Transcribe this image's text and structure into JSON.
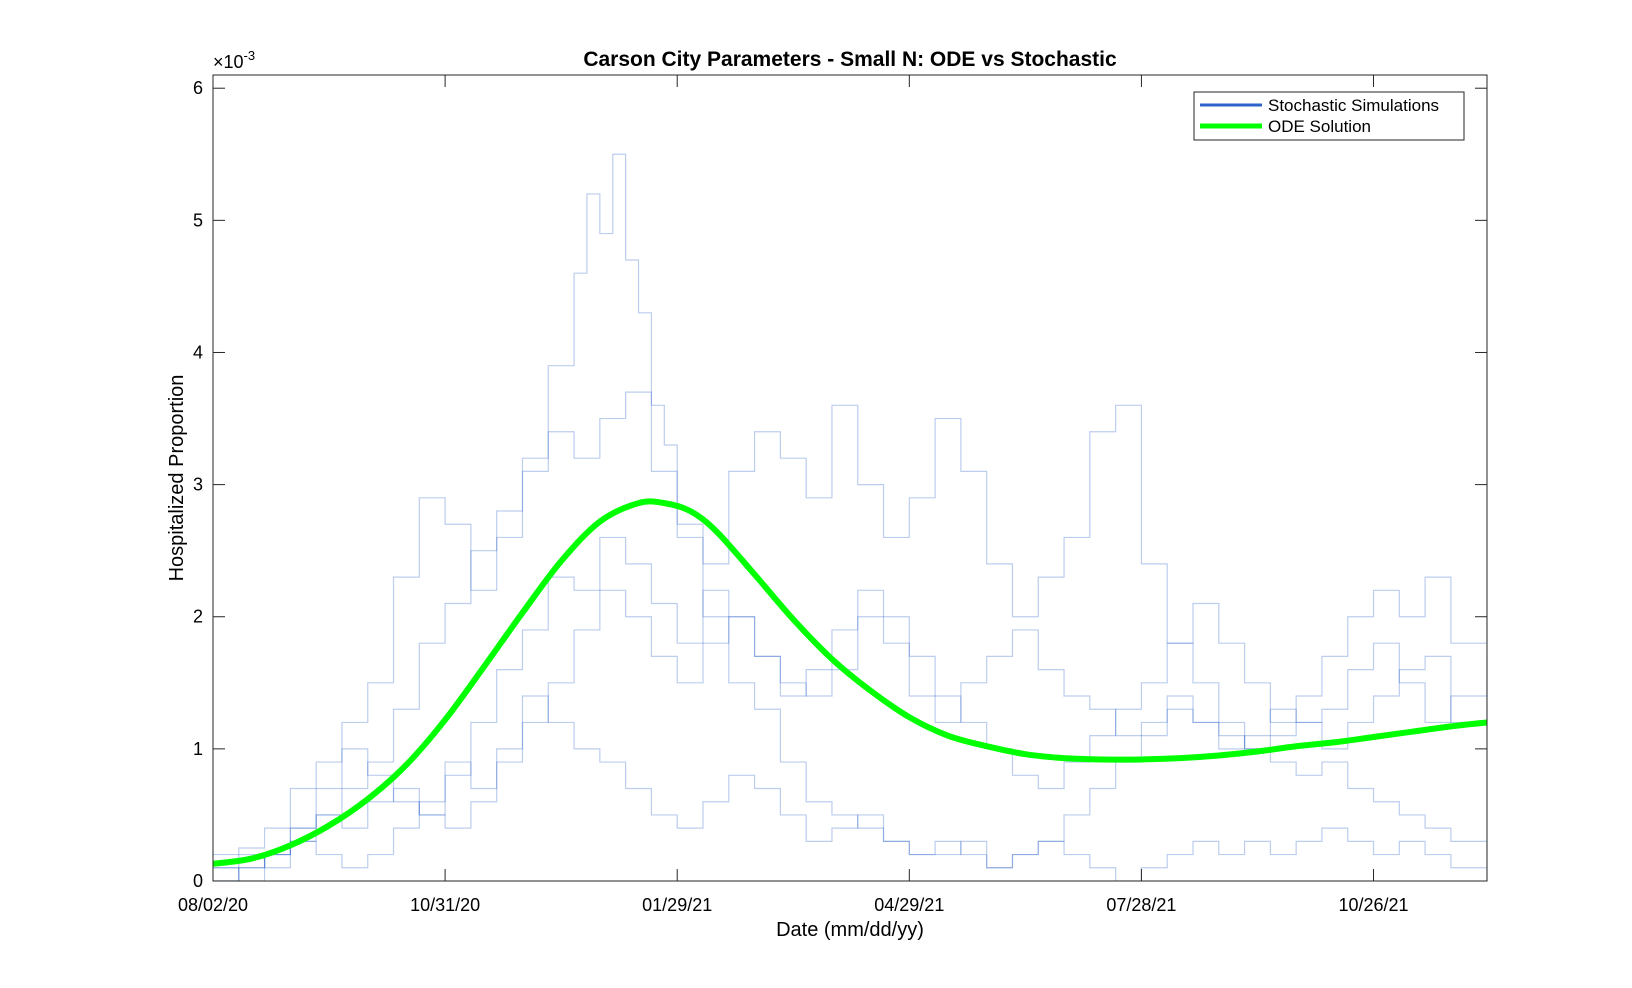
{
  "chart_data": {
    "type": "line",
    "title": "Carson City Parameters - Small N: ODE vs Stochastic",
    "xlabel": "Date (mm/dd/yy)",
    "ylabel": "Hospitalized Proportion",
    "y_multiplier_label": "×10",
    "y_multiplier_exponent": "-3",
    "x_range_days": [
      0,
      494
    ],
    "ylim": [
      0,
      6.1
    ],
    "x_ticks": [
      {
        "day": 0,
        "label": "08/02/20"
      },
      {
        "day": 90,
        "label": "10/31/20"
      },
      {
        "day": 180,
        "label": "01/29/21"
      },
      {
        "day": 270,
        "label": "04/29/21"
      },
      {
        "day": 360,
        "label": "07/28/21"
      },
      {
        "day": 450,
        "label": "10/26/21"
      }
    ],
    "y_ticks": [
      {
        "value": 0,
        "label": "0"
      },
      {
        "value": 1,
        "label": "1"
      },
      {
        "value": 2,
        "label": "2"
      },
      {
        "value": 3,
        "label": "3"
      },
      {
        "value": 4,
        "label": "4"
      },
      {
        "value": 5,
        "label": "5"
      },
      {
        "value": 6,
        "label": "6"
      }
    ],
    "grid": false,
    "legend_position": "top-right",
    "series": [
      {
        "name": "ODE Solution",
        "color": "#00ff00",
        "x": [
          0,
          15,
          30,
          45,
          60,
          75,
          90,
          105,
          120,
          135,
          150,
          165,
          175,
          185,
          195,
          210,
          225,
          240,
          255,
          270,
          285,
          300,
          315,
          330,
          345,
          360,
          375,
          390,
          405,
          420,
          435,
          450,
          465,
          480,
          494
        ],
        "values": [
          0.13,
          0.17,
          0.27,
          0.42,
          0.62,
          0.88,
          1.22,
          1.62,
          2.03,
          2.42,
          2.72,
          2.86,
          2.86,
          2.8,
          2.65,
          2.32,
          1.98,
          1.68,
          1.44,
          1.24,
          1.1,
          1.02,
          0.96,
          0.93,
          0.92,
          0.92,
          0.93,
          0.95,
          0.98,
          1.02,
          1.05,
          1.09,
          1.13,
          1.17,
          1.2
        ]
      },
      {
        "name": "Stochastic Simulations",
        "color": "#2e63c9",
        "runs": [
          {
            "x": [
              0,
              10,
              20,
              30,
              40,
              50,
              60,
              70,
              80,
              90,
              100,
              110,
              120,
              130,
              140,
              145,
              150,
              155,
              160,
              165,
              170,
              175,
              180,
              190,
              200,
              210,
              220,
              230,
              240,
              250,
              260,
              270,
              280,
              290,
              300,
              310,
              320,
              330,
              340,
              350,
              360,
              370,
              380,
              390,
              400,
              410,
              420,
              430,
              440,
              450,
              460,
              470,
              480,
              494
            ],
            "values": [
              0.2,
              0.25,
              0.4,
              0.7,
              0.9,
              1.2,
              1.5,
              2.3,
              2.9,
              2.7,
              2.2,
              2.6,
              3.2,
              3.9,
              4.6,
              5.2,
              4.9,
              5.5,
              4.7,
              4.3,
              3.6,
              3.3,
              2.6,
              2.0,
              1.5,
              1.3,
              0.9,
              0.6,
              0.5,
              0.4,
              0.3,
              0.2,
              0.2,
              0.3,
              0.1,
              0.2,
              0.3,
              0.2,
              0.1,
              0.0,
              0.1,
              0.2,
              0.3,
              0.2,
              0.3,
              0.2,
              0.3,
              0.4,
              0.3,
              0.2,
              0.3,
              0.2,
              0.1,
              0.0
            ]
          },
          {
            "x": [
              0,
              10,
              20,
              30,
              40,
              50,
              60,
              70,
              80,
              90,
              100,
              110,
              120,
              130,
              140,
              150,
              160,
              170,
              180,
              190,
              200,
              210,
              220,
              230,
              240,
              250,
              260,
              270,
              280,
              290,
              300,
              310,
              320,
              330,
              340,
              350,
              360,
              370,
              380,
              390,
              400,
              410,
              420,
              430,
              440,
              450,
              460,
              470,
              480,
              494
            ],
            "values": [
              0.0,
              0.1,
              0.2,
              0.4,
              0.5,
              0.7,
              0.9,
              1.3,
              1.8,
              2.1,
              2.5,
              2.8,
              3.1,
              3.4,
              3.2,
              3.5,
              3.7,
              3.1,
              2.7,
              2.4,
              3.1,
              3.4,
              3.2,
              2.9,
              3.6,
              3.0,
              2.6,
              2.9,
              3.5,
              3.1,
              2.4,
              2.0,
              2.3,
              2.6,
              3.4,
              3.6,
              2.4,
              1.8,
              1.5,
              1.2,
              1.0,
              0.9,
              0.8,
              0.9,
              0.7,
              0.6,
              0.5,
              0.4,
              0.3,
              0.2
            ]
          },
          {
            "x": [
              0,
              10,
              20,
              30,
              40,
              50,
              60,
              70,
              80,
              90,
              100,
              110,
              120,
              130,
              140,
              150,
              160,
              170,
              180,
              190,
              200,
              210,
              220,
              230,
              240,
              250,
              260,
              270,
              280,
              290,
              300,
              310,
              320,
              330,
              340,
              350,
              360,
              370,
              380,
              390,
              400,
              410,
              420,
              430,
              440,
              450,
              460,
              470,
              480,
              494
            ],
            "values": [
              0.1,
              0.2,
              0.1,
              0.3,
              0.5,
              0.4,
              0.6,
              0.7,
              0.5,
              0.8,
              1.2,
              1.6,
              1.9,
              2.3,
              2.2,
              2.6,
              2.4,
              2.1,
              1.8,
              2.2,
              2.0,
              1.7,
              1.5,
              1.4,
              1.6,
              2.0,
              1.8,
              1.4,
              1.2,
              1.5,
              1.7,
              1.9,
              1.6,
              1.4,
              1.3,
              1.1,
              1.2,
              1.4,
              1.2,
              1.1,
              1.0,
              1.1,
              1.2,
              1.3,
              1.6,
              1.8,
              1.5,
              1.2,
              1.4,
              1.7
            ]
          },
          {
            "x": [
              0,
              10,
              20,
              30,
              40,
              50,
              60,
              70,
              80,
              90,
              100,
              110,
              120,
              130,
              140,
              150,
              160,
              170,
              180,
              190,
              200,
              210,
              220,
              230,
              240,
              250,
              260,
              270,
              280,
              290,
              300,
              310,
              320,
              330,
              340,
              350,
              360,
              370,
              380,
              390,
              400,
              410,
              420,
              430,
              440,
              450,
              460,
              470,
              480,
              494
            ],
            "values": [
              0.0,
              0.1,
              0.2,
              0.3,
              0.2,
              0.1,
              0.2,
              0.4,
              0.6,
              0.9,
              0.7,
              1.0,
              1.4,
              1.2,
              1.0,
              0.9,
              0.7,
              0.5,
              0.4,
              0.6,
              0.8,
              0.7,
              0.5,
              0.3,
              0.4,
              0.5,
              0.3,
              0.2,
              0.3,
              0.2,
              0.1,
              0.2,
              0.3,
              0.5,
              0.7,
              0.9,
              1.1,
              1.3,
              1.2,
              1.0,
              1.1,
              1.3,
              1.2,
              1.0,
              1.2,
              1.4,
              1.6,
              1.7,
              1.2,
              1.5
            ]
          },
          {
            "x": [
              0,
              10,
              20,
              30,
              40,
              50,
              60,
              70,
              80,
              90,
              100,
              110,
              120,
              130,
              140,
              150,
              160,
              170,
              180,
              190,
              200,
              210,
              220,
              230,
              240,
              250,
              260,
              270,
              280,
              290,
              300,
              310,
              320,
              330,
              340,
              350,
              360,
              370,
              380,
              390,
              400,
              410,
              420,
              430,
              440,
              450,
              460,
              470,
              480,
              494
            ],
            "values": [
              0.1,
              0.0,
              0.2,
              0.4,
              0.7,
              1.0,
              0.8,
              0.6,
              0.5,
              0.4,
              0.6,
              0.9,
              1.2,
              1.5,
              1.9,
              2.2,
              2.0,
              1.7,
              1.5,
              1.8,
              2.0,
              1.7,
              1.4,
              1.6,
              1.9,
              2.2,
              2.0,
              1.7,
              1.4,
              1.2,
              1.0,
              0.8,
              0.7,
              0.9,
              1.1,
              1.3,
              1.5,
              1.8,
              2.1,
              1.8,
              1.5,
              1.2,
              1.4,
              1.7,
              2.0,
              2.2,
              2.0,
              2.3,
              1.8,
              2.0
            ]
          }
        ]
      }
    ]
  }
}
